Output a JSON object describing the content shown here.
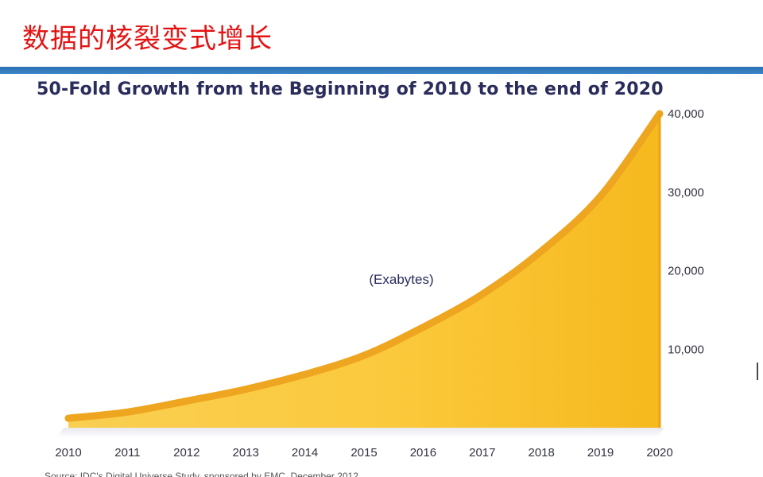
{
  "slide": {
    "title": "数据的核裂变式增长",
    "accent_color": "#e41414",
    "rule_color": "#2c6fb4"
  },
  "source_note": "Source: IDC's Digital Universe Study, sponsored by EMC, December 2012",
  "chart_data": {
    "type": "area",
    "title": "50-Fold Growth from the Beginning of 2010 to the end of 2020",
    "unit_label": "(Exabytes)",
    "x": [
      "2010",
      "2011",
      "2012",
      "2013",
      "2014",
      "2015",
      "2016",
      "2017",
      "2018",
      "2019",
      "2020"
    ],
    "series": [
      {
        "values": [
          1200,
          2000,
          3400,
          4900,
          6800,
          9200,
          12800,
          17000,
          22500,
          29500,
          40000
        ],
        "color": "#f7c232"
      }
    ],
    "yticks": [
      "10,000",
      "20,000",
      "30,000",
      "40,000"
    ],
    "ylim": [
      0,
      40000
    ],
    "grid": false,
    "y_axis_side": "right"
  }
}
